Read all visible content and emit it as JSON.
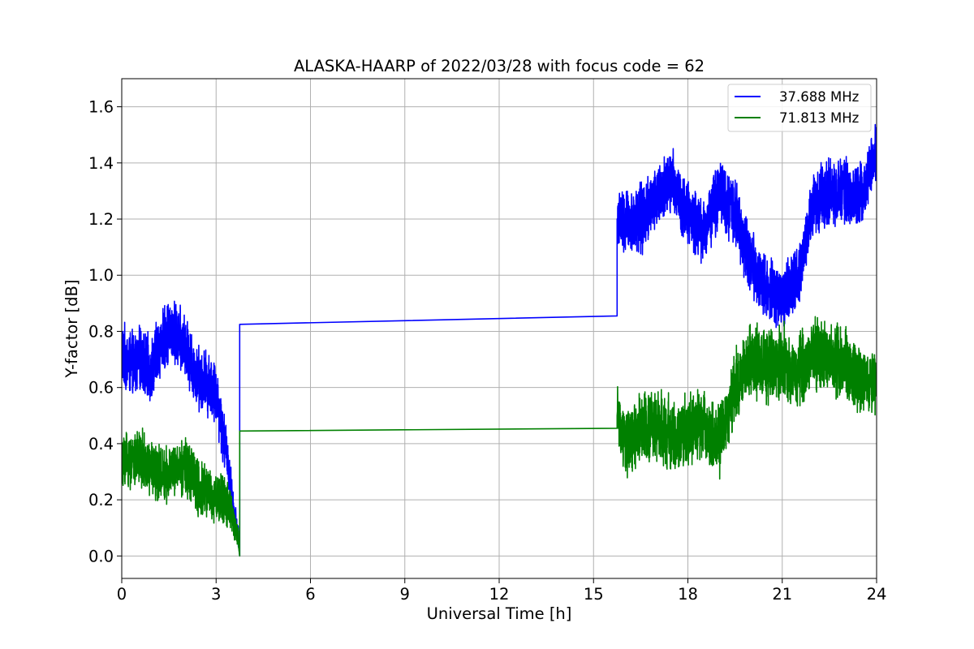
{
  "chart_data": {
    "type": "line",
    "title": "ALASKA-HAARP of 2022/03/28 with focus code = 62",
    "xlabel": "Universal Time [h]",
    "ylabel": "Y-factor [dB]",
    "xlim": [
      0,
      24
    ],
    "ylim": [
      -0.08,
      1.7
    ],
    "xticks": [
      0,
      3,
      6,
      9,
      12,
      15,
      18,
      21,
      24
    ],
    "yticks": [
      0.0,
      0.2,
      0.4,
      0.6,
      0.8,
      1.0,
      1.2,
      1.4,
      1.6
    ],
    "ytick_labels": [
      "0.0",
      "0.2",
      "0.4",
      "0.6",
      "0.8",
      "1.0",
      "1.2",
      "1.4",
      "1.6"
    ],
    "grid": true,
    "legend_position": "upper right",
    "series": [
      {
        "name": "37.688 MHz",
        "color": "#0000ff",
        "x": [
          0.0,
          0.3,
          0.6,
          0.9,
          1.2,
          1.5,
          1.8,
          2.1,
          2.4,
          2.7,
          3.0,
          3.2,
          3.4,
          3.55,
          3.7,
          3.75,
          3.75,
          15.75,
          15.75,
          16.0,
          16.5,
          17.0,
          17.5,
          18.0,
          18.5,
          19.0,
          19.5,
          20.0,
          20.5,
          21.0,
          21.5,
          22.0,
          22.5,
          23.0,
          23.5,
          24.0
        ],
        "y": [
          0.72,
          0.68,
          0.7,
          0.66,
          0.75,
          0.8,
          0.78,
          0.72,
          0.64,
          0.62,
          0.58,
          0.45,
          0.32,
          0.15,
          0.08,
          0.0,
          0.825,
          0.855,
          1.2,
          1.18,
          1.2,
          1.28,
          1.33,
          1.22,
          1.15,
          1.3,
          1.22,
          1.05,
          0.95,
          0.92,
          1.0,
          1.25,
          1.3,
          1.3,
          1.28,
          1.45
        ],
        "noise": [
          0.13,
          0.13,
          0.13,
          0.13,
          0.13,
          0.13,
          0.13,
          0.13,
          0.13,
          0.13,
          0.13,
          0.12,
          0.1,
          0.08,
          0.05,
          0.0,
          0.0,
          0.0,
          0.12,
          0.14,
          0.14,
          0.14,
          0.14,
          0.13,
          0.13,
          0.14,
          0.14,
          0.13,
          0.13,
          0.13,
          0.13,
          0.13,
          0.13,
          0.13,
          0.13,
          0.12
        ]
      },
      {
        "name": "71.813 MHz",
        "color": "#008000",
        "x": [
          0.0,
          0.3,
          0.6,
          0.9,
          1.2,
          1.5,
          1.8,
          2.1,
          2.4,
          2.7,
          3.0,
          3.2,
          3.4,
          3.55,
          3.7,
          3.75,
          3.75,
          15.75,
          15.75,
          16.0,
          16.5,
          17.0,
          17.5,
          18.0,
          18.5,
          19.0,
          19.5,
          20.0,
          20.5,
          21.0,
          21.5,
          22.0,
          22.5,
          23.0,
          23.5,
          24.0
        ],
        "y": [
          0.35,
          0.33,
          0.35,
          0.32,
          0.3,
          0.3,
          0.33,
          0.3,
          0.25,
          0.22,
          0.2,
          0.2,
          0.18,
          0.12,
          0.06,
          0.0,
          0.445,
          0.455,
          0.5,
          0.4,
          0.45,
          0.48,
          0.43,
          0.45,
          0.47,
          0.4,
          0.6,
          0.7,
          0.68,
          0.7,
          0.65,
          0.72,
          0.7,
          0.68,
          0.62,
          0.62
        ],
        "noise": [
          0.12,
          0.12,
          0.12,
          0.12,
          0.12,
          0.12,
          0.12,
          0.12,
          0.12,
          0.11,
          0.1,
          0.1,
          0.09,
          0.07,
          0.05,
          0.0,
          0.0,
          0.0,
          0.12,
          0.14,
          0.14,
          0.15,
          0.15,
          0.14,
          0.14,
          0.14,
          0.15,
          0.15,
          0.15,
          0.15,
          0.15,
          0.15,
          0.15,
          0.15,
          0.14,
          0.12
        ]
      }
    ]
  }
}
